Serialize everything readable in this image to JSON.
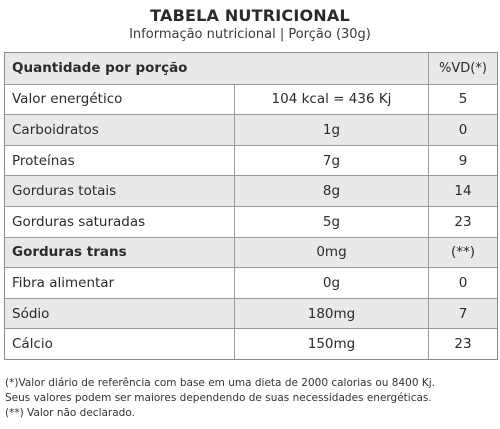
{
  "title": "TABELA NUTRICIONAL",
  "subtitle": "Informação nutricional | Porção (30g)",
  "header": {
    "label": "Quantidade por porção",
    "vd": "%VD(*)"
  },
  "rows": [
    {
      "name": "Valor energético",
      "value": "104 kcal = 436 Kj",
      "vd": "5"
    },
    {
      "name": "Carboidratos",
      "value": "1g",
      "vd": "0"
    },
    {
      "name": "Proteínas",
      "value": "7g",
      "vd": "9"
    },
    {
      "name": "Gorduras totais",
      "value": "8g",
      "vd": "14"
    },
    {
      "name": "Gorduras saturadas",
      "value": "5g",
      "vd": "23"
    },
    {
      "name": "Gorduras trans",
      "value": "0mg",
      "vd": "(**)"
    },
    {
      "name": "Fibra alimentar",
      "value": "0g",
      "vd": "0"
    },
    {
      "name": "Sódio",
      "value": "180mg",
      "vd": "7"
    },
    {
      "name": "Cálcio",
      "value": "150mg",
      "vd": "23"
    }
  ],
  "footnotes": [
    "(*)Valor diário de referência com base em uma dieta de 2000 calorias ou 8400 Kj.",
    "Seus valores podem ser maiores dependendo de suas necessidades energéticas.",
    "(**) Valor não declarado."
  ]
}
